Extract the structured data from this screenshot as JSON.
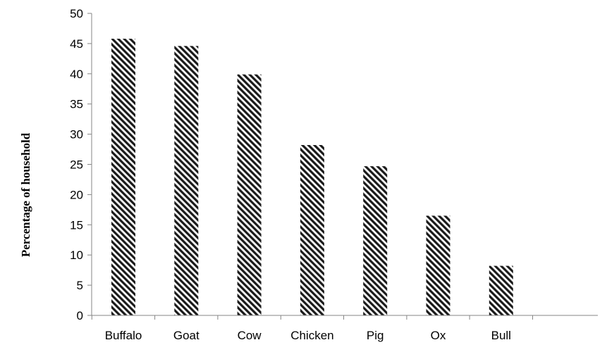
{
  "chart_data": {
    "type": "bar",
    "title": "",
    "xlabel": "",
    "ylabel": "Percentage of household",
    "categories": [
      "Buffalo",
      "Goat",
      "Cow",
      "Chicken",
      "Pig",
      "Ox",
      "Bull"
    ],
    "values": [
      45.8,
      44.6,
      39.9,
      28.2,
      24.7,
      16.5,
      8.2
    ],
    "ylim": [
      0,
      50
    ],
    "yticks": [
      0,
      5,
      10,
      15,
      20,
      25,
      30,
      35,
      40,
      45,
      50
    ],
    "grid": false,
    "legend": "none",
    "bar_fill": "diagonal-stripes",
    "bar_color": "#000000"
  }
}
